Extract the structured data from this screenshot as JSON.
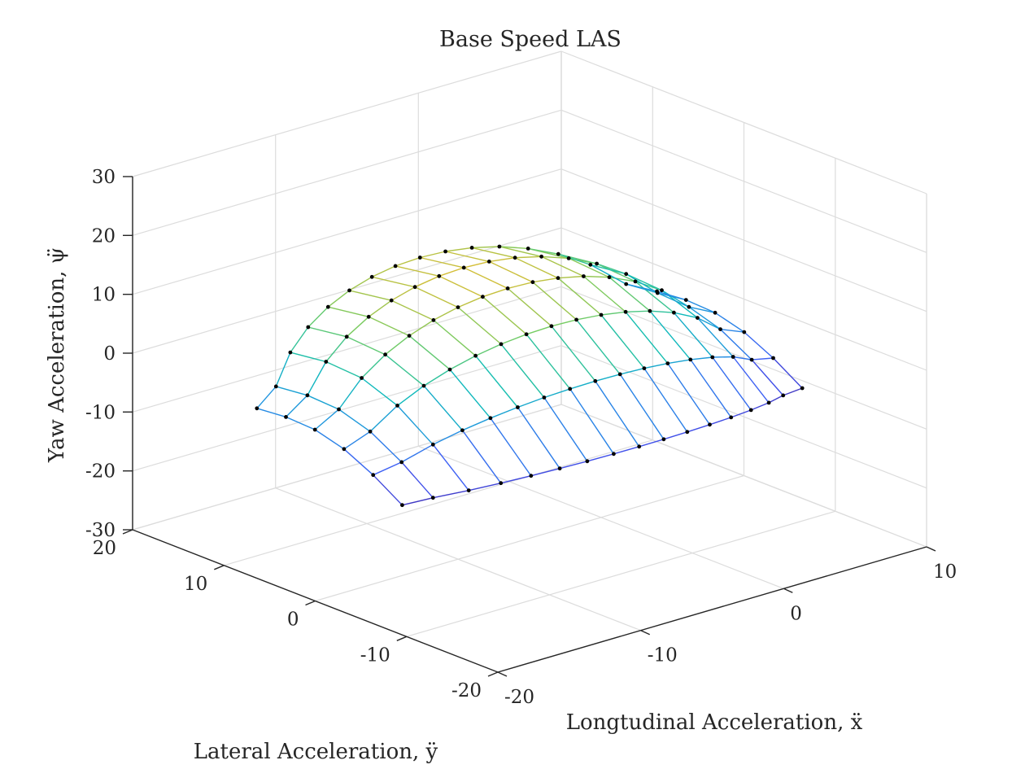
{
  "chart_data": {
    "type": "surface-mesh",
    "title": "Base Speed LAS",
    "xlabel": "Longtudinal Acceleration, ẍ",
    "ylabel": "Lateral Acceleration, ÿ",
    "zlabel": "Yaw Acceleration, ψ̈",
    "xlim": [
      -20,
      10
    ],
    "ylim": [
      -20,
      20
    ],
    "zlim": [
      -30,
      30
    ],
    "xticks": [
      -20,
      -10,
      0,
      10
    ],
    "yticks": [
      -20,
      -10,
      0,
      10,
      20
    ],
    "zticks": [
      -30,
      -20,
      -10,
      0,
      10,
      20,
      30
    ],
    "grid": true,
    "colormap": "parula",
    "surface": {
      "x_range": [
        -19,
        9
      ],
      "y_range": [
        -12,
        12
      ],
      "z_range": [
        -11,
        21
      ],
      "slices": 17,
      "points_per_slice": 6
    }
  }
}
